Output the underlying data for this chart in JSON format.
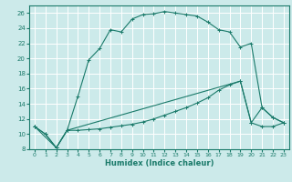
{
  "xlabel": "Humidex (Indice chaleur)",
  "bg_color": "#cceaea",
  "line_color": "#1a7a6a",
  "grid_color": "#ffffff",
  "xlim": [
    -0.5,
    23.5
  ],
  "ylim": [
    8,
    27
  ],
  "yticks": [
    8,
    10,
    12,
    14,
    16,
    18,
    20,
    22,
    24,
    26
  ],
  "xticks": [
    0,
    1,
    2,
    3,
    4,
    5,
    6,
    7,
    8,
    9,
    10,
    11,
    12,
    13,
    14,
    15,
    16,
    17,
    18,
    19,
    20,
    21,
    22,
    23
  ],
  "curve1_x": [
    0,
    1,
    2,
    3,
    4,
    5,
    6,
    7,
    8,
    9,
    10,
    11,
    12,
    13,
    14,
    15,
    16,
    17,
    18,
    19,
    20,
    21,
    22,
    23
  ],
  "curve1_y": [
    11.0,
    10.0,
    8.2,
    10.5,
    15.0,
    19.8,
    21.3,
    23.8,
    23.5,
    25.2,
    25.8,
    25.9,
    26.2,
    26.0,
    25.8,
    25.6,
    24.8,
    23.8,
    23.5,
    21.5,
    22.0,
    13.5,
    12.2,
    11.5
  ],
  "curve2_x": [
    0,
    1,
    2,
    3,
    4,
    5,
    6,
    7,
    8,
    9,
    10,
    11,
    12,
    13,
    14,
    15,
    16,
    17,
    18,
    19,
    20,
    21,
    22,
    23
  ],
  "curve2_y": [
    11.0,
    10.0,
    8.2,
    10.5,
    10.5,
    10.6,
    10.7,
    10.9,
    11.1,
    11.3,
    11.6,
    12.0,
    12.5,
    13.0,
    13.5,
    14.1,
    14.8,
    15.8,
    16.5,
    17.0,
    11.5,
    11.0,
    11.0,
    11.5
  ],
  "curve3_x": [
    0,
    2,
    3,
    19,
    20,
    21,
    22,
    23
  ],
  "curve3_y": [
    11.0,
    8.2,
    10.5,
    17.0,
    11.5,
    13.5,
    12.2,
    11.5
  ]
}
